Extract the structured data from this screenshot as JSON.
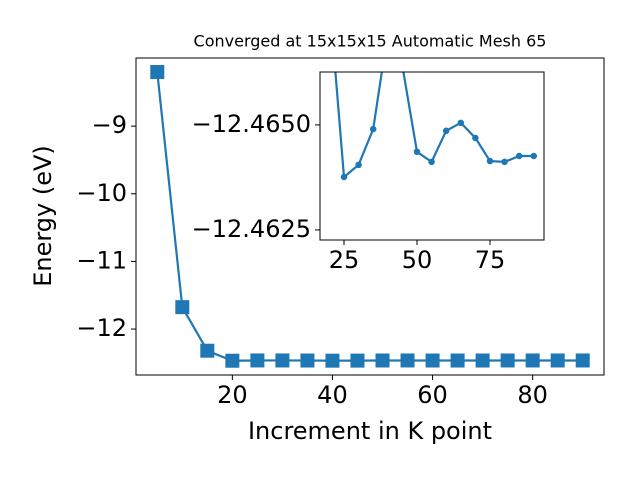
{
  "chart_data": [
    {
      "type": "line",
      "title": "Converged at 15x15x15 Automatic Mesh 65",
      "xlabel": "Increment in K point",
      "ylabel": "Energy (eV)",
      "x": [
        5,
        10,
        15,
        20,
        25,
        30,
        35,
        40,
        45,
        50,
        55,
        60,
        65,
        70,
        75,
        80,
        85,
        90
      ],
      "series": [
        {
          "color": "#1f77b4",
          "marker": "square",
          "values": [
            -8.2,
            -11.676,
            -12.32,
            -12.468,
            -12.46376,
            -12.46405,
            -12.4649,
            -12.4672,
            -12.4664,
            -12.46436,
            -12.46412,
            -12.46486,
            -12.46505,
            -12.46469,
            -12.46414,
            -12.46412,
            -12.46426,
            -12.46426
          ]
        }
      ],
      "xlim": [
        0.75,
        94.25
      ],
      "ylim": [
        -12.679,
        -7.993
      ],
      "xticks": [
        20,
        40,
        60,
        80
      ],
      "yticks": [
        {
          "value": -12,
          "label": "−12"
        },
        {
          "value": -11,
          "label": "−11"
        },
        {
          "value": -10,
          "label": "−10"
        },
        {
          "value": -9,
          "label": "−9"
        }
      ]
    },
    {
      "type": "line",
      "x": [
        20,
        25,
        30,
        35,
        40,
        45,
        50,
        55,
        60,
        65,
        70,
        75,
        80,
        85,
        90
      ],
      "series": [
        {
          "color": "#1f77b4",
          "marker": "circle",
          "values": [
            -12.468,
            -12.46376,
            -12.46405,
            -12.4649,
            -12.4672,
            -12.4664,
            -12.46436,
            -12.46412,
            -12.46486,
            -12.46505,
            -12.46469,
            -12.46414,
            -12.46412,
            -12.46426,
            -12.46426
          ]
        }
      ],
      "xlim": [
        16.78,
        93.5
      ],
      "ylim": [
        -12.46226,
        -12.46626
      ],
      "xticks": [
        25,
        50,
        75
      ],
      "yticks": [
        {
          "value": -12.4625,
          "label": "−12.4625"
        },
        {
          "value": -12.465,
          "label": "−12.4650"
        }
      ]
    }
  ]
}
